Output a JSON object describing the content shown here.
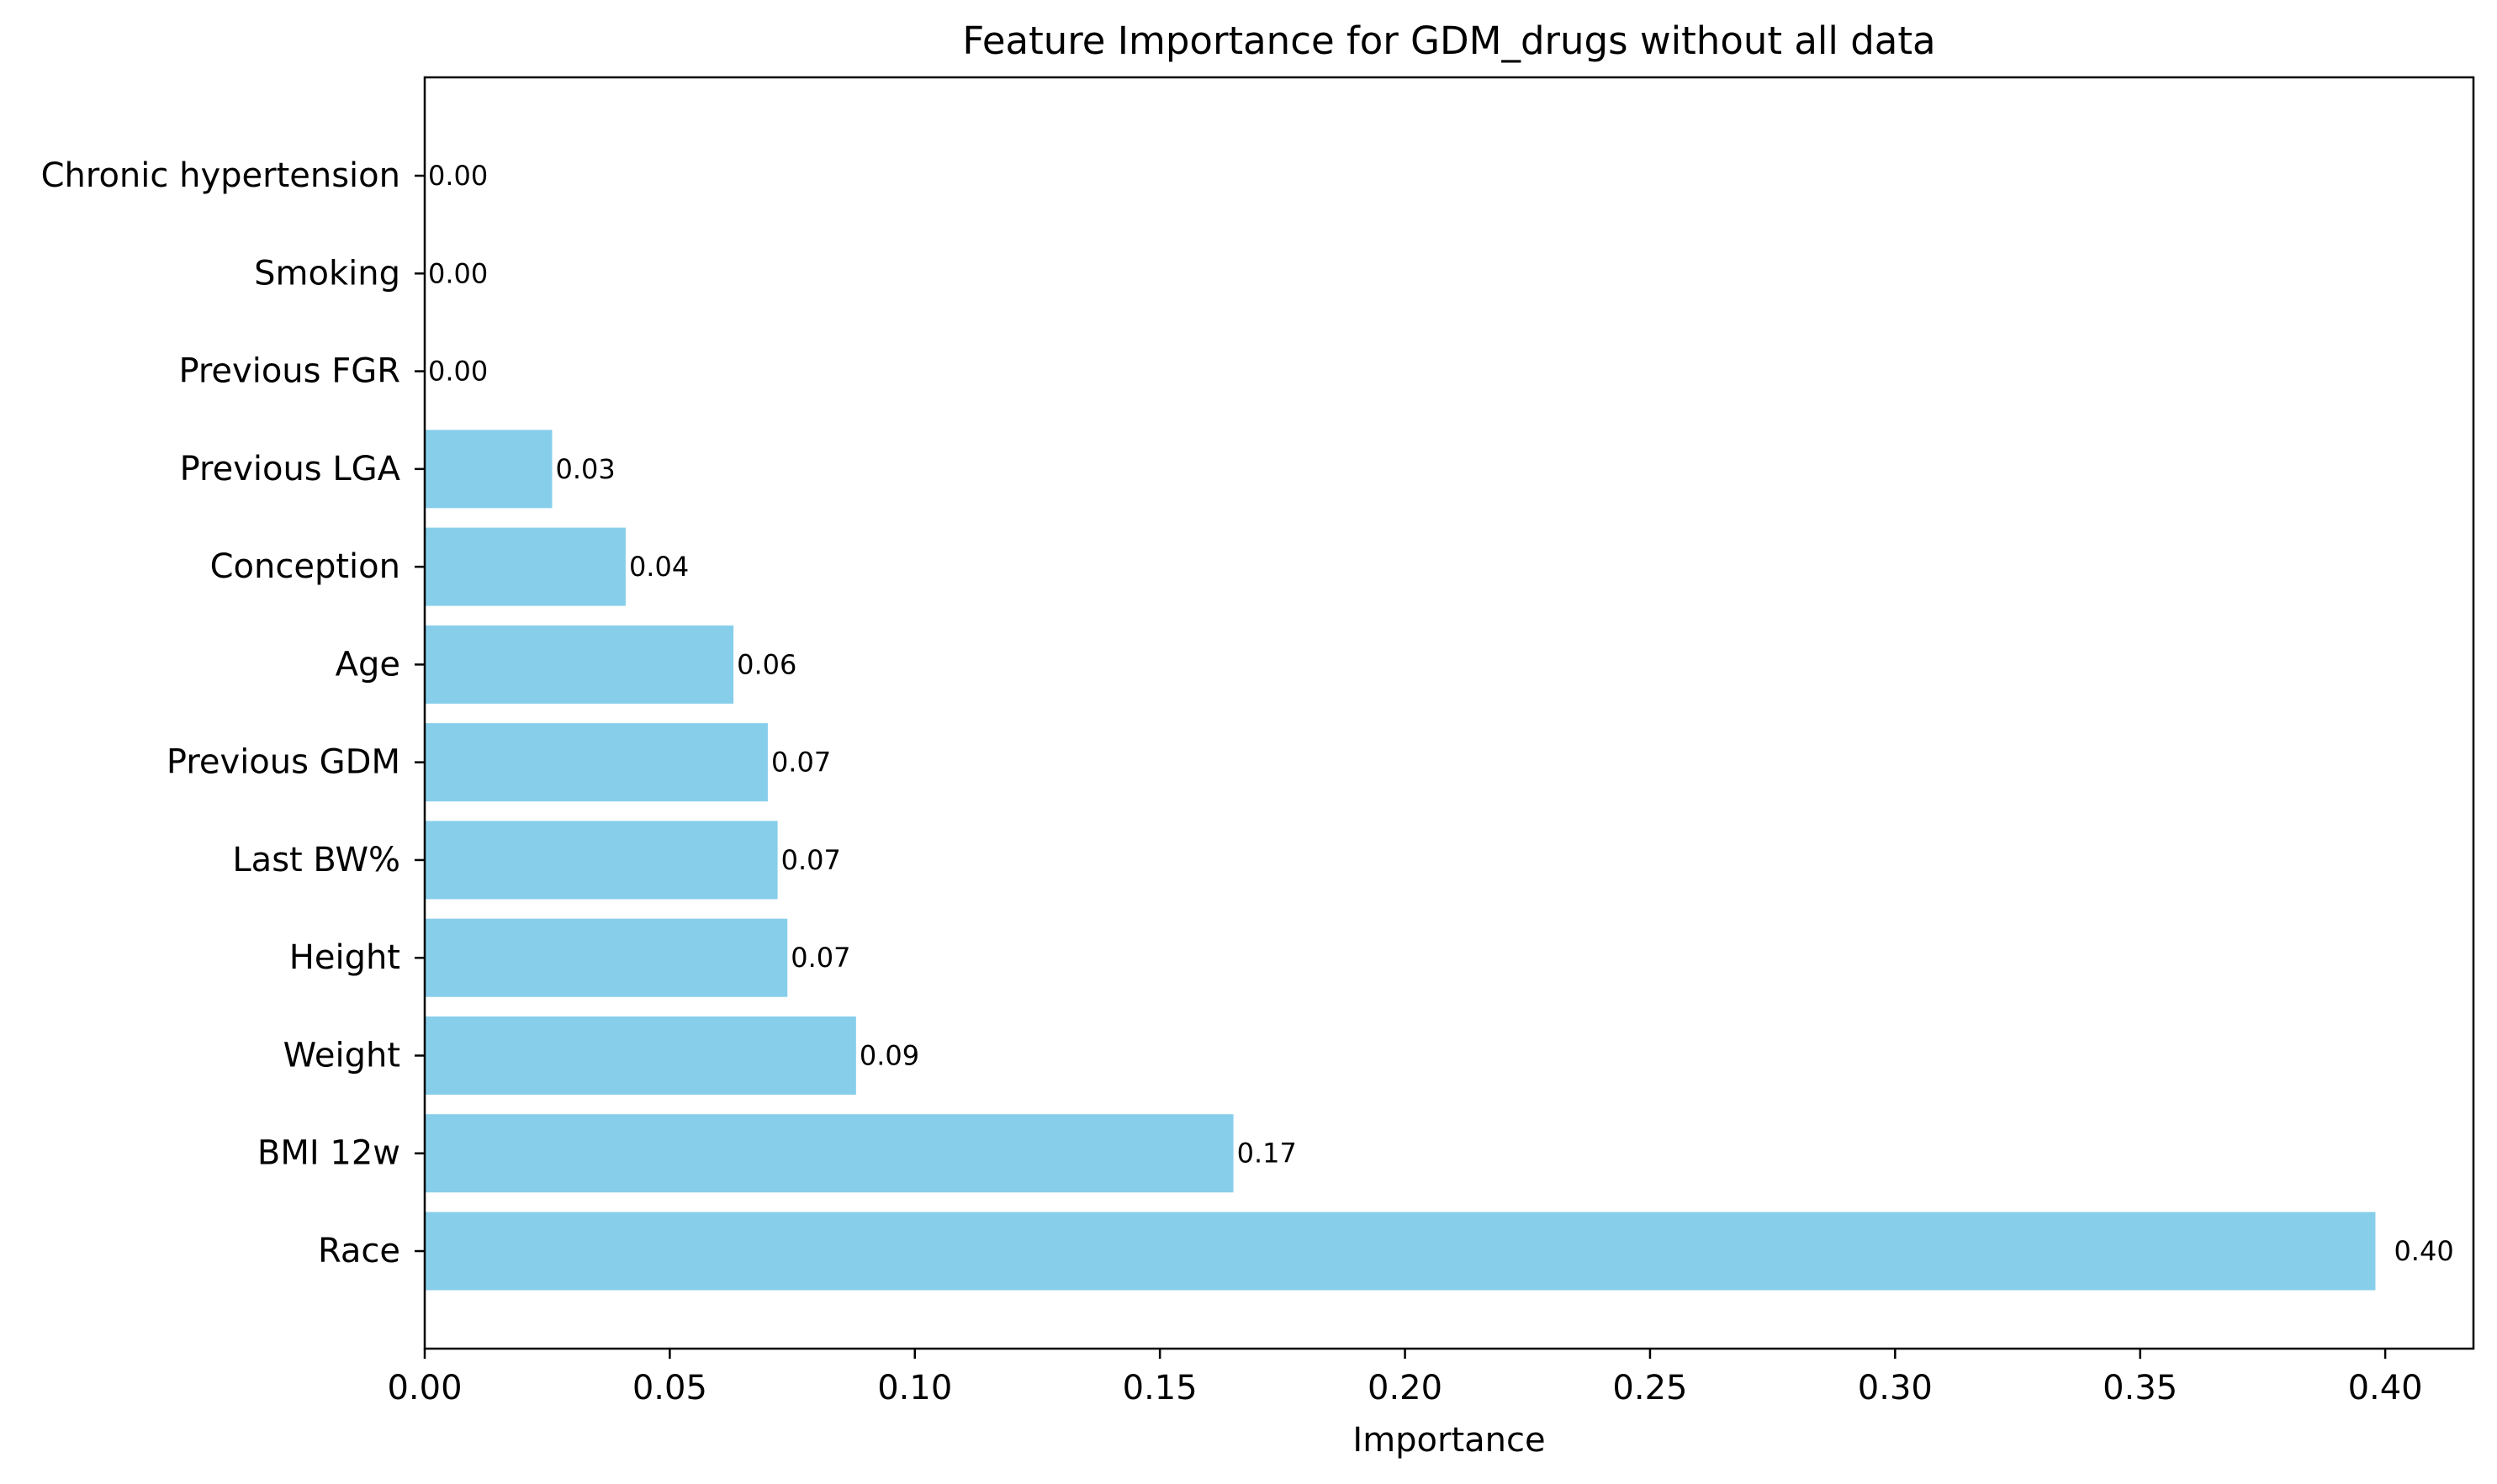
{
  "chart_data": {
    "type": "bar",
    "orientation": "horizontal",
    "title": "Feature Importance for GDM_drugs without all data",
    "xlabel": "Importance",
    "ylabel": "",
    "categories": [
      "Race",
      "BMI 12w",
      "Weight",
      "Height",
      "Last BW%",
      "Previous GDM",
      "Age",
      "Conception",
      "Previous LGA",
      "Previous FGR",
      "Smoking",
      "Chronic hypertension"
    ],
    "values": [
      0.398,
      0.165,
      0.088,
      0.074,
      0.072,
      0.07,
      0.063,
      0.041,
      0.026,
      0.0,
      0.0,
      0.0
    ],
    "data_labels": [
      "0.40",
      "0.17",
      "0.09",
      "0.07",
      "0.07",
      "0.07",
      "0.06",
      "0.04",
      "0.03",
      "0.00",
      "0.00",
      "0.00"
    ],
    "xlim": [
      0,
      0.418
    ],
    "xticks": [
      0.0,
      0.05,
      0.1,
      0.15,
      0.2,
      0.25,
      0.3,
      0.35,
      0.4
    ],
    "xtick_labels": [
      "0.00",
      "0.05",
      "0.10",
      "0.15",
      "0.20",
      "0.25",
      "0.30",
      "0.35",
      "0.40"
    ],
    "bar_color": "#87ceeb",
    "grid": false,
    "legend": "none"
  }
}
